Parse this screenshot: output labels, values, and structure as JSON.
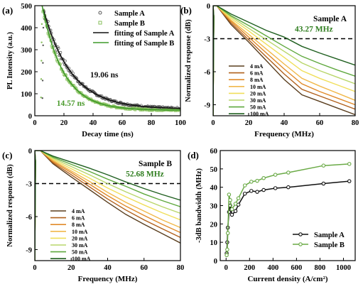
{
  "chart_data": [
    {
      "panel_label": "(a)",
      "type": "scatter",
      "xlabel": "Decay time (ns)",
      "ylabel": "PL Intensity (a.u.)",
      "xlim": [
        0,
        100
      ],
      "ylim": [
        0,
        500
      ],
      "xticks": [
        0,
        20,
        40,
        60,
        80,
        100
      ],
      "yticks": [
        0,
        100,
        200,
        300,
        400,
        500
      ],
      "legend": "top-right",
      "series": [
        {
          "name": "Sample A",
          "kind": "markers",
          "color": "#555555",
          "tau_ns": 19.06,
          "peak": 480,
          "t0": 6,
          "baseline": 30
        },
        {
          "name": "Sample B",
          "kind": "markers",
          "color": "#86bf5a",
          "tau_ns": 14.57,
          "peak": 500,
          "t0": 5,
          "baseline": 25
        },
        {
          "name": "fitting of Sample A",
          "kind": "line",
          "color": "#111111",
          "tau_ns": 19.06,
          "peak": 480,
          "t0": 6,
          "baseline": 30
        },
        {
          "name": "fitting of Sample B",
          "kind": "line",
          "color": "#3f9a2a",
          "tau_ns": 14.57,
          "peak": 500,
          "t0": 5,
          "baseline": 25
        }
      ],
      "annotations": [
        {
          "text": "19.06 ns",
          "color": "#111111",
          "x": 38,
          "y": 175
        },
        {
          "text": "14.57 ns",
          "color": "#4a9a2c",
          "x": 15,
          "y": 45
        }
      ]
    },
    {
      "panel_label": "(b)",
      "type": "line",
      "title": "Sample A",
      "xlabel": "Frequency (MHz)",
      "ylabel": "Normalized response (dB)",
      "xlim": [
        0,
        80
      ],
      "ylim": [
        -10,
        0
      ],
      "xticks": [
        0,
        20,
        40,
        60,
        80
      ],
      "yticks": [
        0,
        -3,
        -6,
        -9
      ],
      "legend": "bottom-left",
      "threshold_db": -3,
      "threshold_label": "43.27 MHz",
      "series": [
        {
          "name": "4 mA",
          "color": "#5a3e1e",
          "points": [
            [
              0,
              0
            ],
            [
              2,
              0
            ],
            [
              10,
              -1.7
            ],
            [
              20,
              -3.3
            ],
            [
              30,
              -5.0
            ],
            [
              40,
              -6.7
            ],
            [
              50,
              -8.1
            ],
            [
              60,
              -8.7
            ],
            [
              70,
              -9.3
            ],
            [
              80,
              -9.9
            ]
          ]
        },
        {
          "name": "6 mA",
          "color": "#b0601c",
          "points": [
            [
              0,
              0
            ],
            [
              2,
              0
            ],
            [
              10,
              -1.55
            ],
            [
              20,
              -3.1
            ],
            [
              30,
              -4.65
            ],
            [
              40,
              -6.2
            ],
            [
              50,
              -7.6
            ],
            [
              60,
              -8.2
            ],
            [
              70,
              -8.8
            ],
            [
              80,
              -9.4
            ]
          ]
        },
        {
          "name": "8 mA",
          "color": "#e08a2a",
          "points": [
            [
              0,
              0
            ],
            [
              2,
              0
            ],
            [
              10,
              -1.4
            ],
            [
              20,
              -2.85
            ],
            [
              30,
              -4.3
            ],
            [
              40,
              -5.75
            ],
            [
              50,
              -7.1
            ],
            [
              60,
              -7.8
            ],
            [
              70,
              -8.4
            ],
            [
              80,
              -9.0
            ]
          ]
        },
        {
          "name": "10 mA",
          "color": "#f1b84a",
          "points": [
            [
              0,
              0
            ],
            [
              2,
              0
            ],
            [
              10,
              -1.3
            ],
            [
              20,
              -2.6
            ],
            [
              30,
              -3.95
            ],
            [
              40,
              -5.3
            ],
            [
              50,
              -6.6
            ],
            [
              60,
              -7.3
            ],
            [
              70,
              -7.95
            ],
            [
              80,
              -8.6
            ]
          ]
        },
        {
          "name": "20 mA",
          "color": "#f0df5a",
          "points": [
            [
              0,
              0
            ],
            [
              2,
              0
            ],
            [
              10,
              -1.15
            ],
            [
              20,
              -2.3
            ],
            [
              30,
              -3.5
            ],
            [
              40,
              -4.7
            ],
            [
              50,
              -5.9
            ],
            [
              60,
              -6.6
            ],
            [
              70,
              -7.2
            ],
            [
              80,
              -7.8
            ]
          ]
        },
        {
          "name": "30 mA",
          "color": "#b9d66a",
          "points": [
            [
              0,
              0
            ],
            [
              2,
              0
            ],
            [
              10,
              -1.0
            ],
            [
              20,
              -2.05
            ],
            [
              30,
              -3.1
            ],
            [
              40,
              -4.15
            ],
            [
              50,
              -5.2
            ],
            [
              60,
              -5.9
            ],
            [
              70,
              -6.5
            ],
            [
              80,
              -7.1
            ]
          ]
        },
        {
          "name": "50 mA",
          "color": "#5fa83e",
          "points": [
            [
              0,
              0
            ],
            [
              2,
              0
            ],
            [
              10,
              -0.9
            ],
            [
              20,
              -1.8
            ],
            [
              30,
              -2.75
            ],
            [
              40,
              -3.7
            ],
            [
              50,
              -4.6
            ],
            [
              60,
              -5.25
            ],
            [
              70,
              -5.85
            ],
            [
              80,
              -6.4
            ]
          ]
        },
        {
          "name": "100 mA",
          "color": "#1f5f1f",
          "points": [
            [
              0,
              0
            ],
            [
              2,
              0
            ],
            [
              10,
              -0.75
            ],
            [
              20,
              -1.5
            ],
            [
              30,
              -2.25
            ],
            [
              40,
              -2.85
            ],
            [
              50,
              -3.7
            ],
            [
              60,
              -4.3
            ],
            [
              70,
              -4.85
            ],
            [
              80,
              -5.4
            ]
          ]
        }
      ]
    },
    {
      "panel_label": "(c)",
      "type": "line",
      "title": "Sample B",
      "xlabel": "Frequency (MHz)",
      "ylabel": "Normalized response (dB)",
      "xlim": [
        0,
        80
      ],
      "ylim": [
        -10,
        0
      ],
      "xticks": [
        0,
        20,
        40,
        60,
        80
      ],
      "yticks": [
        0,
        -3,
        -6,
        -9
      ],
      "legend": "bottom-left",
      "threshold_db": -3,
      "threshold_label": "52.68 MHz",
      "series": [
        {
          "name": "4 mA",
          "color": "#5a3e1e",
          "points": [
            [
              0,
              0
            ],
            [
              3,
              0
            ],
            [
              10,
              -1.2
            ],
            [
              20,
              -2.4
            ],
            [
              30,
              -3.55
            ],
            [
              40,
              -4.7
            ],
            [
              50,
              -5.8
            ],
            [
              60,
              -6.7
            ],
            [
              70,
              -7.55
            ],
            [
              80,
              -8.4
            ]
          ]
        },
        {
          "name": "6 mA",
          "color": "#b0601c",
          "points": [
            [
              0,
              0
            ],
            [
              3,
              0
            ],
            [
              10,
              -1.1
            ],
            [
              20,
              -2.2
            ],
            [
              30,
              -3.3
            ],
            [
              40,
              -4.4
            ],
            [
              50,
              -5.4
            ],
            [
              60,
              -6.3
            ],
            [
              70,
              -7.1
            ],
            [
              80,
              -7.9
            ]
          ]
        },
        {
          "name": "8 mA",
          "color": "#e08a2a",
          "points": [
            [
              0,
              0
            ],
            [
              3,
              0
            ],
            [
              10,
              -1.0
            ],
            [
              20,
              -2.0
            ],
            [
              30,
              -3.05
            ],
            [
              40,
              -4.1
            ],
            [
              50,
              -5.05
            ],
            [
              60,
              -5.9
            ],
            [
              70,
              -6.7
            ],
            [
              80,
              -7.45
            ]
          ]
        },
        {
          "name": "10 mA",
          "color": "#f1b84a",
          "points": [
            [
              0,
              0
            ],
            [
              3,
              0
            ],
            [
              10,
              -0.9
            ],
            [
              20,
              -1.85
            ],
            [
              30,
              -2.8
            ],
            [
              40,
              -3.8
            ],
            [
              50,
              -4.7
            ],
            [
              60,
              -5.5
            ],
            [
              70,
              -6.3
            ],
            [
              80,
              -7.0
            ]
          ]
        },
        {
          "name": "20 mA",
          "color": "#f0df5a",
          "points": [
            [
              0,
              0
            ],
            [
              3,
              0
            ],
            [
              10,
              -0.8
            ],
            [
              20,
              -1.65
            ],
            [
              30,
              -2.5
            ],
            [
              40,
              -3.4
            ],
            [
              50,
              -4.2
            ],
            [
              60,
              -4.95
            ],
            [
              70,
              -5.65
            ],
            [
              80,
              -6.3
            ]
          ]
        },
        {
          "name": "30 mA",
          "color": "#b9d66a",
          "points": [
            [
              0,
              0
            ],
            [
              3,
              0
            ],
            [
              10,
              -0.7
            ],
            [
              20,
              -1.45
            ],
            [
              30,
              -2.2
            ],
            [
              40,
              -3.0
            ],
            [
              50,
              -3.75
            ],
            [
              60,
              -4.45
            ],
            [
              70,
              -5.1
            ],
            [
              80,
              -5.7
            ]
          ]
        },
        {
          "name": "50 mA",
          "color": "#5fa83e",
          "points": [
            [
              0,
              0
            ],
            [
              3,
              0
            ],
            [
              10,
              -0.6
            ],
            [
              20,
              -1.25
            ],
            [
              30,
              -1.9
            ],
            [
              40,
              -2.6
            ],
            [
              50,
              -3.25
            ],
            [
              60,
              -3.95
            ],
            [
              70,
              -4.55
            ],
            [
              80,
              -5.1
            ]
          ]
        },
        {
          "name": "100 mA",
          "color": "#1f5f1f",
          "points": [
            [
              0,
              0
            ],
            [
              3,
              0
            ],
            [
              10,
              -0.5
            ],
            [
              20,
              -1.05
            ],
            [
              30,
              -1.6
            ],
            [
              40,
              -2.2
            ],
            [
              50,
              -2.85
            ],
            [
              60,
              -3.45
            ],
            [
              70,
              -4.0
            ],
            [
              80,
              -4.5
            ]
          ]
        }
      ]
    },
    {
      "panel_label": "(d)",
      "type": "line",
      "xlabel": "Current density (A/cm²)",
      "ylabel": "-3dB bandwidth (MHz)",
      "xlim": [
        -50,
        1100
      ],
      "ylim": [
        0,
        60
      ],
      "xticks": [
        0,
        200,
        400,
        600,
        800,
        1000
      ],
      "yticks": [
        0,
        10,
        20,
        30,
        40,
        50,
        60
      ],
      "legend": "bottom-right",
      "series": [
        {
          "name": "Sample A",
          "color": "#111111",
          "marker": "circle",
          "x": [
            5,
            10,
            15,
            25,
            35,
            50,
            80,
            105,
            160,
            215,
            265,
            320,
            420,
            530,
            830,
            1050
          ],
          "y": [
            4,
            10,
            18,
            26.5,
            30,
            25,
            27,
            30.5,
            36.5,
            38,
            37.5,
            38.5,
            39.5,
            40,
            42,
            43.3
          ]
        },
        {
          "name": "Sample B",
          "color": "#6aaa46",
          "marker": "circle",
          "x": [
            5,
            10,
            15,
            25,
            35,
            50,
            80,
            105,
            160,
            215,
            265,
            320,
            420,
            530,
            830,
            1050
          ],
          "y": [
            3,
            6,
            15,
            36,
            33,
            28,
            31,
            34,
            41,
            43,
            43.5,
            45,
            46.8,
            48,
            51.8,
            52.7
          ]
        }
      ]
    }
  ]
}
